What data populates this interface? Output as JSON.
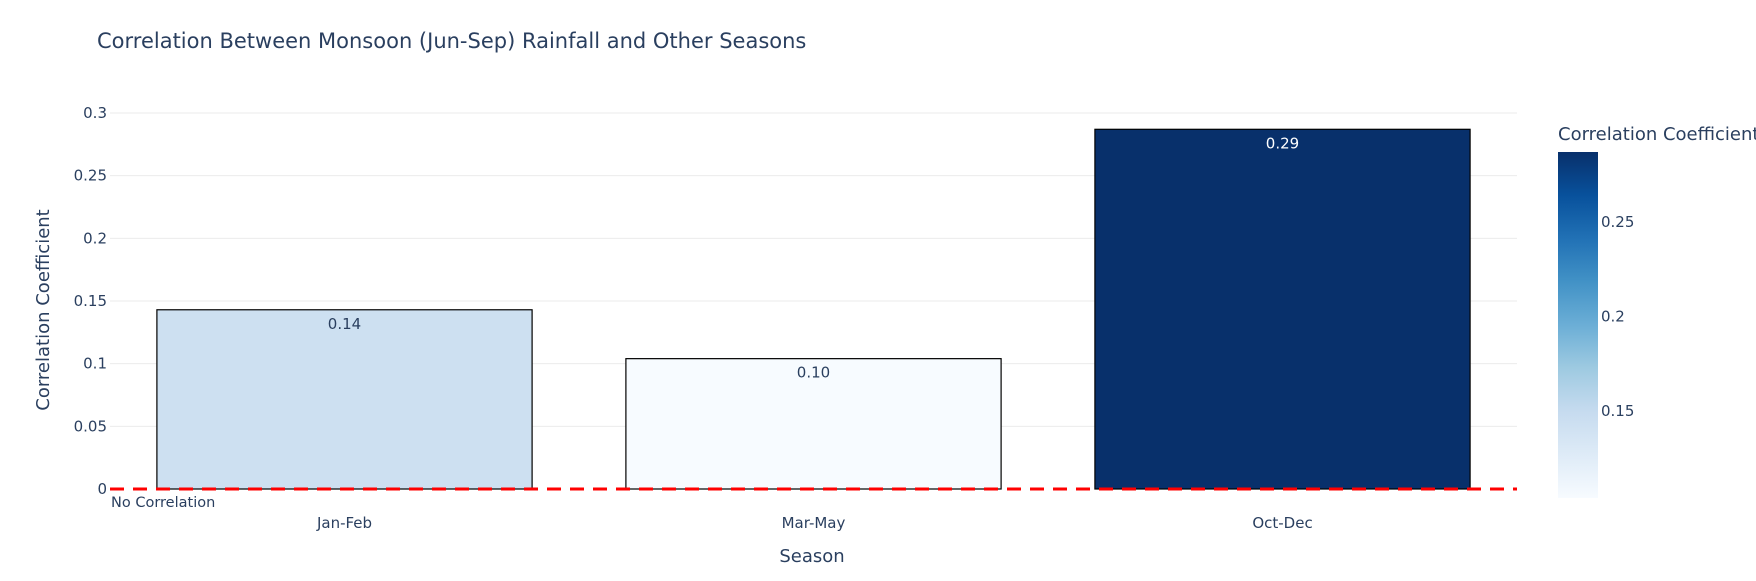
{
  "chart_data": {
    "type": "bar",
    "title": "Correlation Between Monsoon (Jun-Sep) Rainfall and Other Seasons",
    "xlabel": "Season",
    "ylabel": "Correlation Coefficient",
    "categories": [
      "Jan-Feb",
      "Mar-May",
      "Oct-Dec"
    ],
    "values": [
      0.143,
      0.104,
      0.287
    ],
    "data_labels": [
      "0.14",
      "0.10",
      "0.29"
    ],
    "ylim": [
      0,
      0.3
    ],
    "y_ticks": [
      {
        "value": 0,
        "label": "0"
      },
      {
        "value": 0.05,
        "label": "0.05"
      },
      {
        "value": 0.1,
        "label": "0.1"
      },
      {
        "value": 0.15,
        "label": "0.15"
      },
      {
        "value": 0.2,
        "label": "0.2"
      },
      {
        "value": 0.25,
        "label": "0.25"
      },
      {
        "value": 0.3,
        "label": "0.3"
      }
    ],
    "grid": true,
    "reference_line": {
      "value": 0,
      "label": "No Correlation",
      "color": "#ff0000",
      "style": "dashed"
    },
    "colorscale": {
      "name": "Blues",
      "title": "Correlation Coefficient",
      "min": 0.104,
      "max": 0.287,
      "ticks": [
        {
          "value": 0.15,
          "label": "0.15"
        },
        {
          "value": 0.2,
          "label": "0.2"
        },
        {
          "value": 0.25,
          "label": "0.25"
        }
      ],
      "stops": [
        "#f7fbff",
        "#deebf7",
        "#c6dbef",
        "#9ecae1",
        "#6baed6",
        "#4292c6",
        "#2171b5",
        "#08519c",
        "#08306b"
      ]
    },
    "bar_outline_color": "#000000",
    "text_color": "#2a3f5f",
    "grid_color": "#ebebeb"
  }
}
